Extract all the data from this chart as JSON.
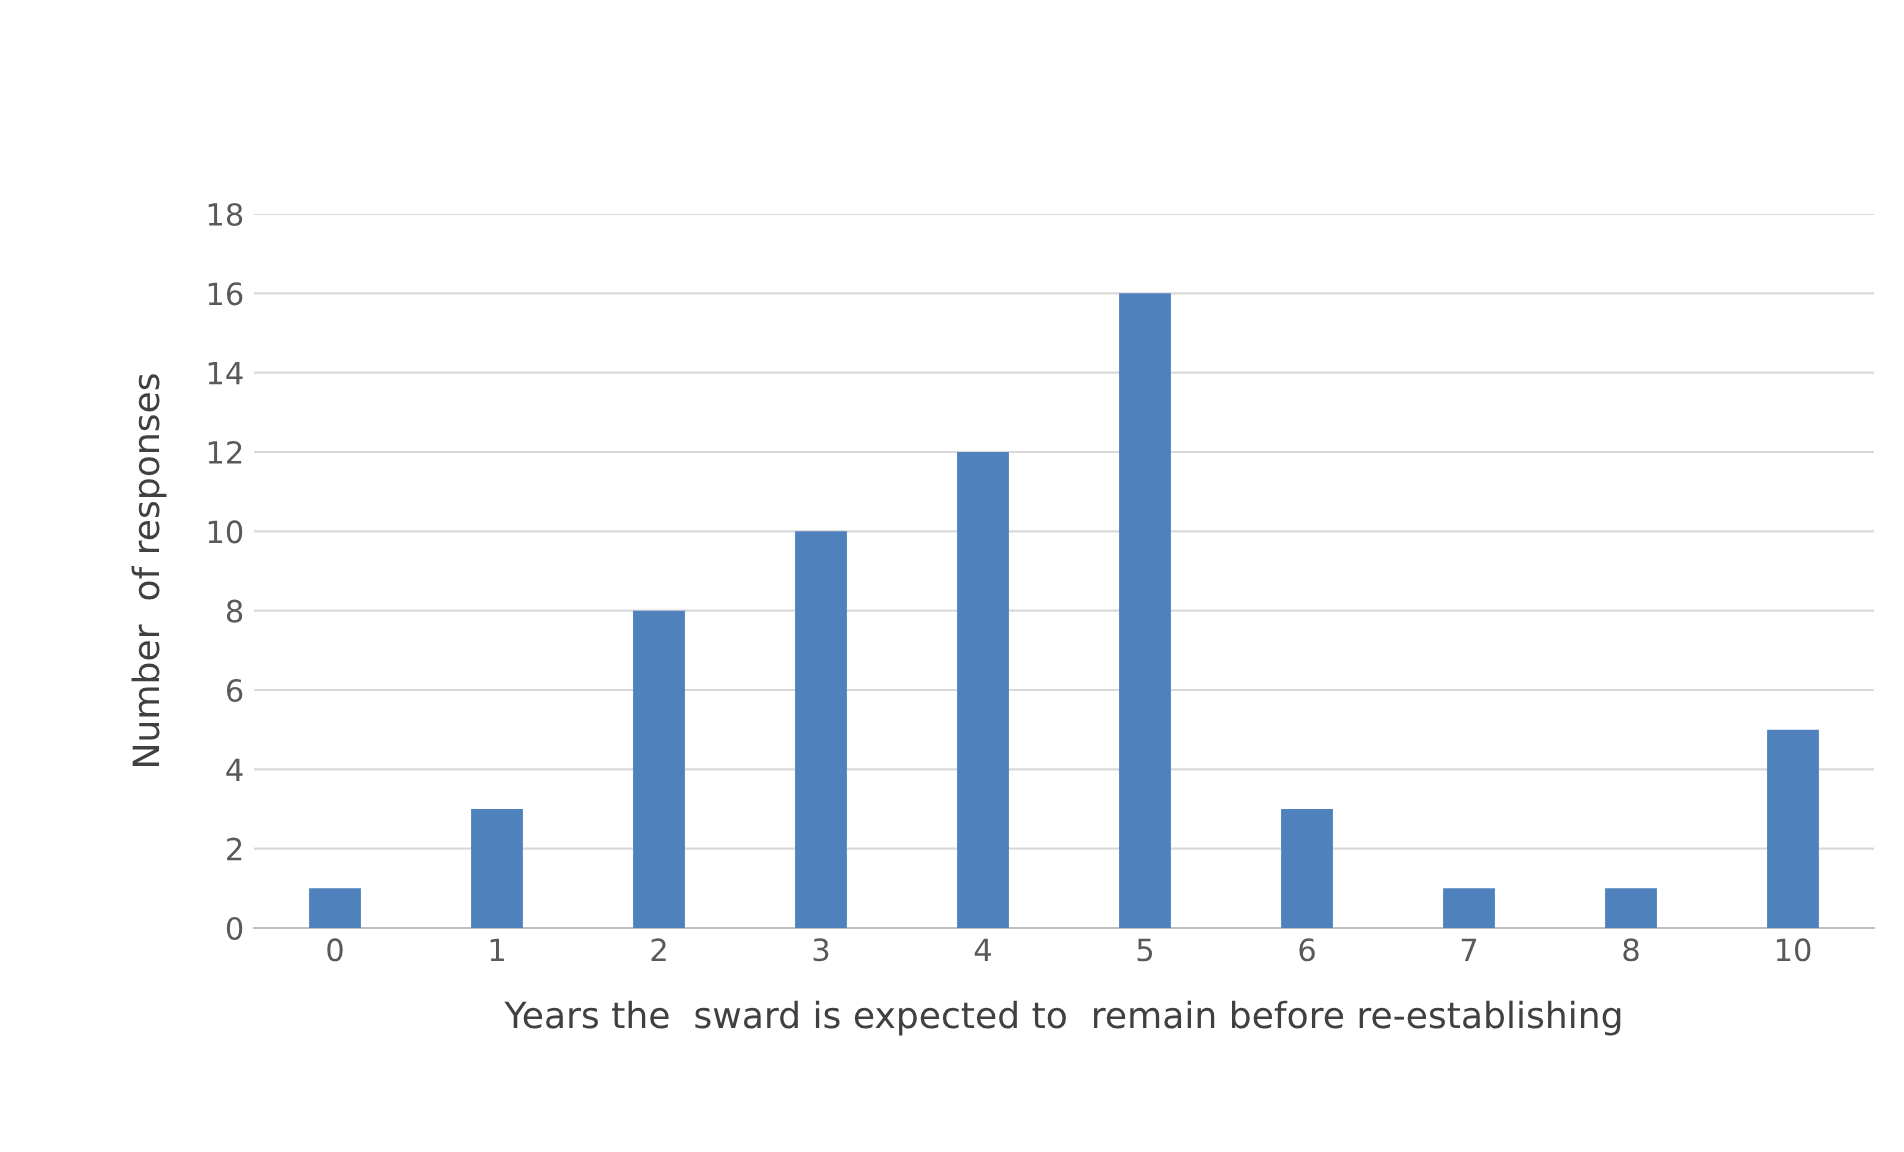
{
  "chart_data": {
    "type": "bar",
    "xlabel": "Years the  sward is expected to  remain before re-establishing",
    "ylabel": "Number  of responses",
    "categories": [
      "0",
      "1",
      "2",
      "3",
      "4",
      "5",
      "6",
      "7",
      "8",
      "10"
    ],
    "values": [
      1,
      3,
      8,
      10,
      12,
      16,
      3,
      1,
      1,
      5
    ],
    "color": "#4f81bd",
    "ylim": [
      0,
      18
    ],
    "yticks": [
      0,
      2,
      4,
      6,
      8,
      10,
      12,
      14,
      16,
      18
    ],
    "grid": "y"
  }
}
